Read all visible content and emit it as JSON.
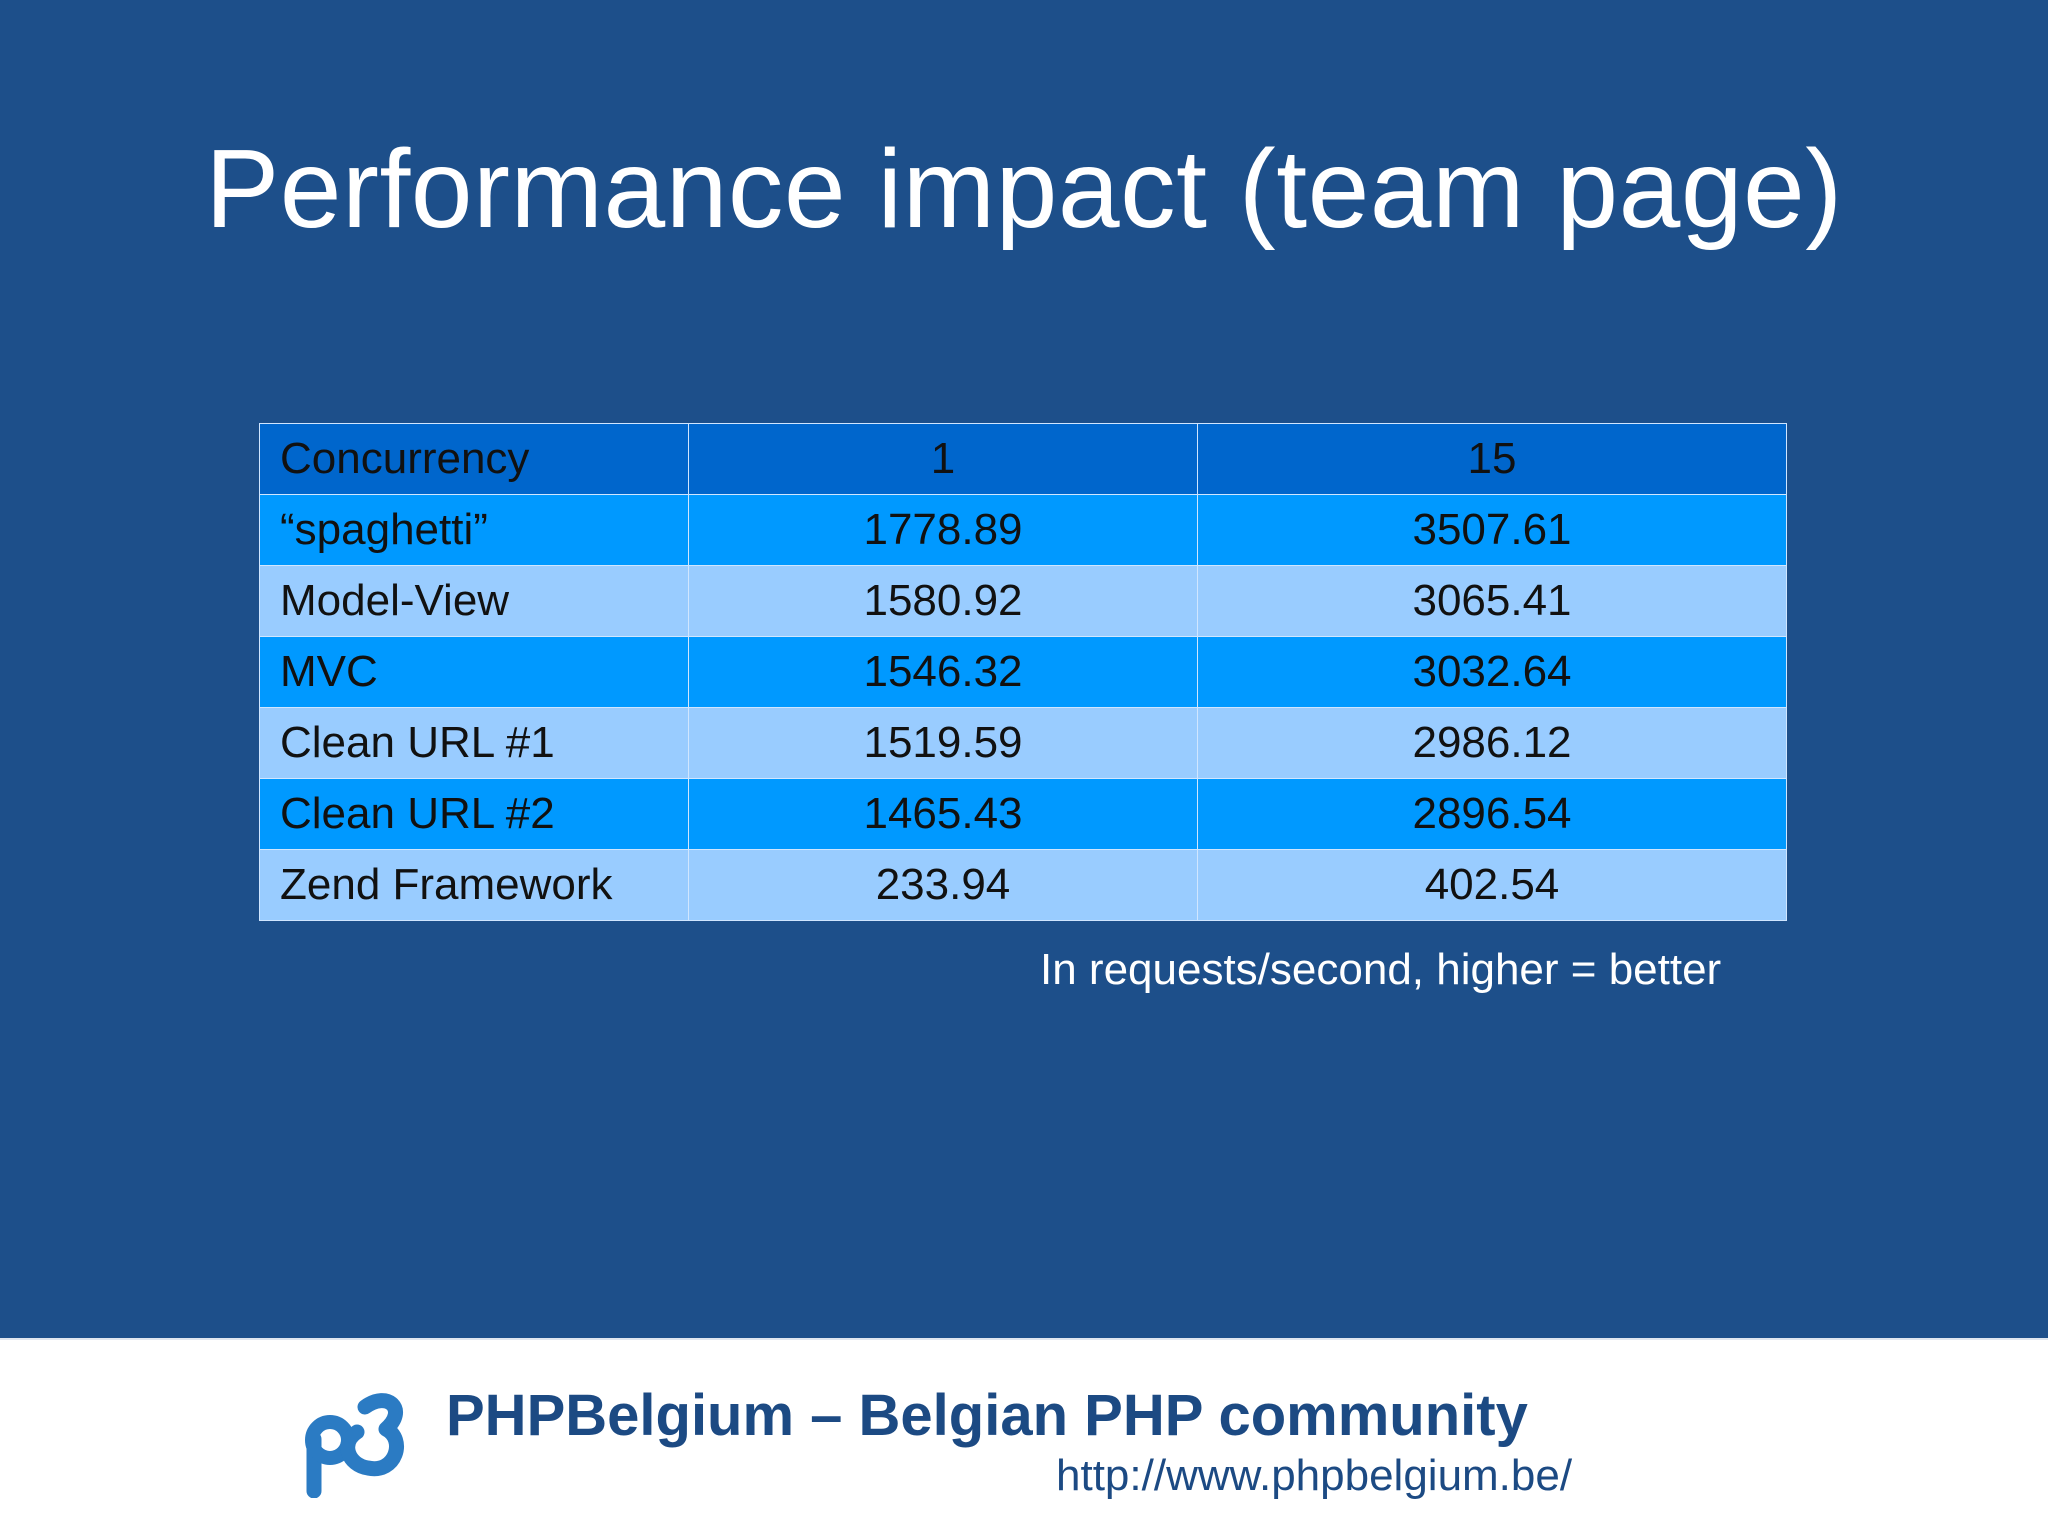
{
  "slide": {
    "title": "Performance impact (team page)",
    "table": {
      "headers": [
        "Concurrency",
        "1",
        "15"
      ],
      "rows": [
        [
          "“spaghetti”",
          "1778.89",
          "3507.61"
        ],
        [
          "Model-View",
          "1580.92",
          "3065.41"
        ],
        [
          "MVC",
          "1546.32",
          "3032.64"
        ],
        [
          "Clean URL #1",
          "1519.59",
          "2986.12"
        ],
        [
          "Clean URL #2",
          "1465.43",
          "2896.54"
        ],
        [
          "Zend Framework",
          "233.94",
          "402.54"
        ]
      ]
    },
    "note": "In requests/second, higher = better"
  },
  "footer": {
    "brand": "PHPBelgium – Belgian PHP community",
    "url": "http://www.phpbelgium.be/",
    "logo_icon": "phpbelgium-logo-icon"
  },
  "colors": {
    "slide_background": "#1d4f8a",
    "header_row": "#0066cc",
    "row_dark": "#0099ff",
    "row_light": "#99ccff",
    "footer_text": "#1c4a83",
    "logo": "#2b7bc3"
  }
}
